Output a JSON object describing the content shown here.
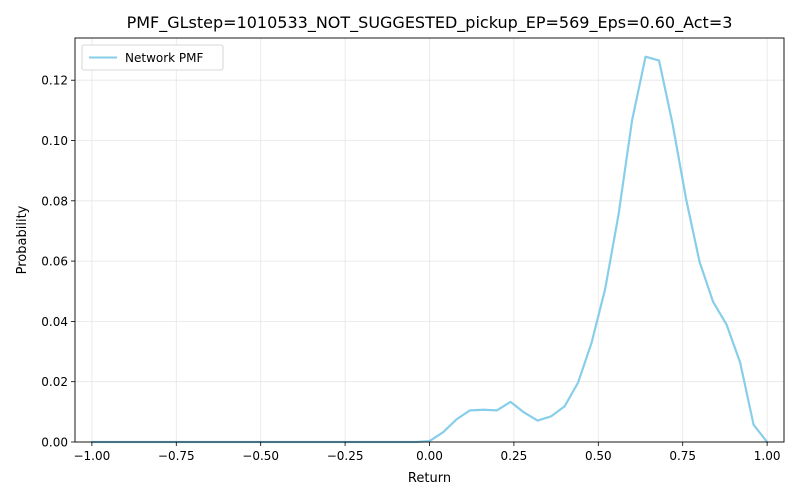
{
  "chart_data": {
    "type": "line",
    "title": "PMF_GLstep=1010533_NOT_SUGGESTED_pickup_EP=569_Eps=0.60_Act=3",
    "xlabel": "Return",
    "ylabel": "Probability",
    "xlim": [
      -1.05,
      1.05
    ],
    "ylim": [
      0,
      0.134
    ],
    "xticks": [
      -1.0,
      -0.75,
      -0.5,
      -0.25,
      0.0,
      0.25,
      0.5,
      0.75,
      1.0
    ],
    "xtick_labels": [
      "−1.00",
      "−0.75",
      "−0.50",
      "−0.25",
      "0.00",
      "0.25",
      "0.50",
      "0.75",
      "1.00"
    ],
    "yticks": [
      0.0,
      0.02,
      0.04,
      0.06,
      0.08,
      0.1,
      0.12
    ],
    "ytick_labels": [
      "0.00",
      "0.02",
      "0.04",
      "0.06",
      "0.08",
      "0.10",
      "0.12"
    ],
    "grid": true,
    "legend_position": "top-left",
    "series": [
      {
        "name": "Network PMF",
        "color": "#87ceeb",
        "x": [
          -1.0,
          -0.96,
          -0.92,
          -0.88,
          -0.84,
          -0.8,
          -0.76,
          -0.72,
          -0.68,
          -0.64,
          -0.6,
          -0.56,
          -0.52,
          -0.48,
          -0.44,
          -0.4,
          -0.36,
          -0.32,
          -0.28,
          -0.24,
          -0.2,
          -0.16,
          -0.12,
          -0.08,
          -0.04,
          0.0,
          0.04,
          0.08,
          0.12,
          0.16,
          0.2,
          0.24,
          0.28,
          0.32,
          0.36,
          0.4,
          0.44,
          0.48,
          0.52,
          0.56,
          0.6,
          0.64,
          0.68,
          0.72,
          0.76,
          0.8,
          0.84,
          0.88,
          0.92,
          0.96,
          1.0
        ],
        "y": [
          0.0,
          0.0,
          0.0,
          0.0,
          0.0,
          0.0,
          0.0,
          0.0,
          0.0,
          0.0,
          0.0,
          0.0,
          0.0,
          0.0,
          0.0,
          0.0,
          0.0,
          0.0,
          0.0,
          0.0,
          0.0,
          0.0,
          0.0,
          0.0,
          0.0,
          0.0003,
          0.0032,
          0.0075,
          0.0105,
          0.0107,
          0.0105,
          0.0133,
          0.0098,
          0.0071,
          0.0085,
          0.0118,
          0.0197,
          0.0329,
          0.0506,
          0.0755,
          0.1067,
          0.1278,
          0.1265,
          0.1055,
          0.0806,
          0.0597,
          0.0465,
          0.0389,
          0.0264,
          0.0057,
          0.0
        ]
      }
    ]
  }
}
